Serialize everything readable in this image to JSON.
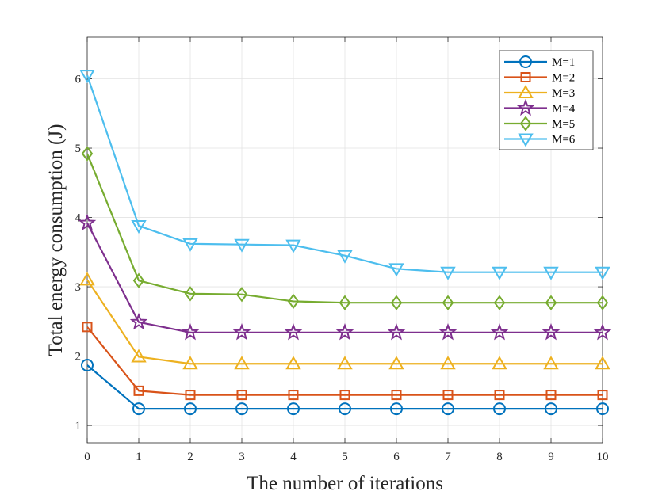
{
  "chart_data": {
    "type": "line",
    "title": "",
    "xlabel": "The number of iterations",
    "ylabel": "Total energy consumption (J)",
    "xlim": [
      0,
      10
    ],
    "ylim": [
      0.75,
      6.6
    ],
    "xticks": [
      "0",
      "1",
      "2",
      "3",
      "4",
      "5",
      "6",
      "7",
      "8",
      "9",
      "10"
    ],
    "yticks": [
      "1",
      "2",
      "3",
      "4",
      "5",
      "6"
    ],
    "grid": true,
    "legend_position": "top-right",
    "x": [
      0,
      1,
      2,
      3,
      4,
      5,
      6,
      7,
      8,
      9,
      10
    ],
    "series": [
      {
        "name": "M=1",
        "color": "#0072BD",
        "marker": "circle",
        "values": [
          1.87,
          1.24,
          1.24,
          1.24,
          1.24,
          1.24,
          1.24,
          1.24,
          1.24,
          1.24,
          1.24
        ]
      },
      {
        "name": "M=2",
        "color": "#D95319",
        "marker": "square",
        "values": [
          2.42,
          1.5,
          1.44,
          1.44,
          1.44,
          1.44,
          1.44,
          1.44,
          1.44,
          1.44,
          1.44
        ]
      },
      {
        "name": "M=3",
        "color": "#EDB120",
        "marker": "triangle-up",
        "values": [
          3.1,
          1.99,
          1.89,
          1.89,
          1.89,
          1.89,
          1.89,
          1.89,
          1.89,
          1.89,
          1.89
        ]
      },
      {
        "name": "M=4",
        "color": "#7E2F8E",
        "marker": "pentagram",
        "values": [
          3.92,
          2.49,
          2.34,
          2.34,
          2.34,
          2.34,
          2.34,
          2.34,
          2.34,
          2.34,
          2.34
        ]
      },
      {
        "name": "M=5",
        "color": "#77AC30",
        "marker": "diamond",
        "values": [
          4.92,
          3.09,
          2.9,
          2.89,
          2.79,
          2.77,
          2.77,
          2.77,
          2.77,
          2.77,
          2.77
        ]
      },
      {
        "name": "M=6",
        "color": "#4DBEEE",
        "marker": "triangle-down",
        "values": [
          6.05,
          3.88,
          3.62,
          3.61,
          3.6,
          3.45,
          3.26,
          3.21,
          3.21,
          3.21,
          3.21
        ]
      }
    ]
  }
}
